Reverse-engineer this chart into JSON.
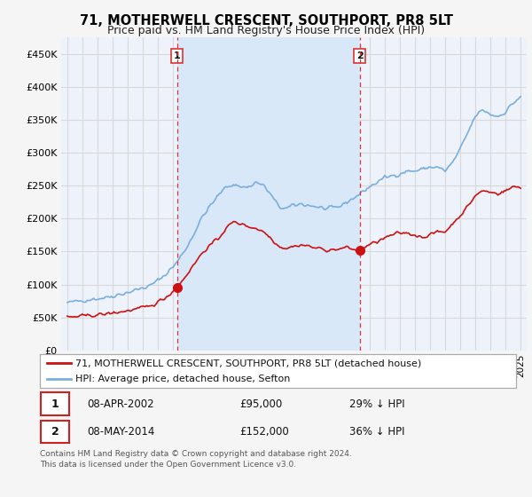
{
  "title": "71, MOTHERWELL CRESCENT, SOUTHPORT, PR8 5LT",
  "subtitle": "Price paid vs. HM Land Registry's House Price Index (HPI)",
  "ylabel_ticks": [
    "£0",
    "£50K",
    "£100K",
    "£150K",
    "£200K",
    "£250K",
    "£300K",
    "£350K",
    "£400K",
    "£450K"
  ],
  "ytick_vals": [
    0,
    50000,
    100000,
    150000,
    200000,
    250000,
    300000,
    350000,
    400000,
    450000
  ],
  "ylim": [
    0,
    475000
  ],
  "xlim_start": 1994.6,
  "xlim_end": 2025.4,
  "sale1_date": 2002.27,
  "sale1_price": 95000,
  "sale1_label": "1",
  "sale2_date": 2014.36,
  "sale2_price": 152000,
  "sale2_label": "2",
  "hpi_color": "#7aade0",
  "price_color": "#cc1111",
  "vline_color": "#dd3333",
  "marker_color": "#cc1111",
  "background_color": "#eef3fb",
  "shade_color": "#d8e8f8",
  "grid_color": "#d8d8d8",
  "fig_background": "#f5f5f5",
  "legend_label1": "71, MOTHERWELL CRESCENT, SOUTHPORT, PR8 5LT (detached house)",
  "legend_label2": "HPI: Average price, detached house, Sefton",
  "footnote": "Contains HM Land Registry data © Crown copyright and database right 2024.\nThis data is licensed under the Open Government Licence v3.0.",
  "title_fontsize": 10.5,
  "subtitle_fontsize": 9
}
